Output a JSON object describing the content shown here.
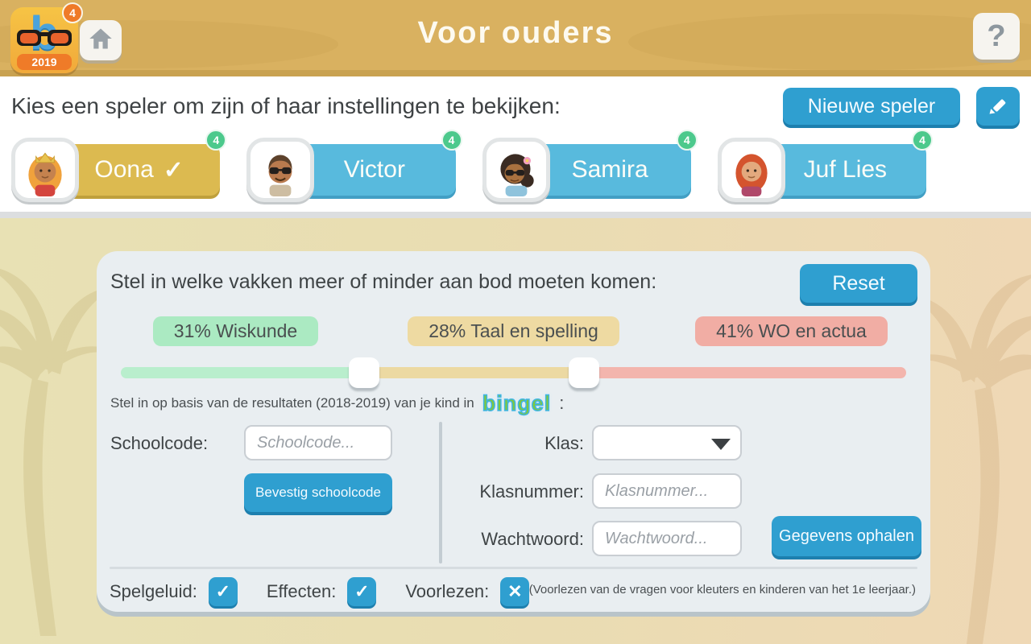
{
  "header": {
    "title": "Voor ouders",
    "logo": {
      "letter": "b",
      "year": "2019",
      "badge": "4"
    },
    "help_label": "?"
  },
  "player_section": {
    "heading": "Kies een speler om zijn of haar instellingen te bekijken:",
    "new_player_label": "Nieuwe speler",
    "selected_check_glyph": "✓",
    "players": [
      {
        "name": "Oona",
        "badge": "4",
        "selected": true
      },
      {
        "name": "Victor",
        "badge": "4",
        "selected": false
      },
      {
        "name": "Samira",
        "badge": "4",
        "selected": false
      },
      {
        "name": "Juf Lies",
        "badge": "4",
        "selected": false
      }
    ]
  },
  "settings": {
    "subjects_heading": "Stel in welke vakken meer of minder aan bod moeten komen:",
    "reset_label": "Reset",
    "subjects": [
      {
        "label": "31% Wiskunde",
        "percent": 31,
        "pill_color": "#abeac2",
        "track_color": "#b9eecd"
      },
      {
        "label": "28% Taal en spelling",
        "percent": 28,
        "pill_color": "#eedaa2",
        "track_color": "#ecd9a2"
      },
      {
        "label": "41% WO en actua",
        "percent": 41,
        "pill_color": "#f1ada4",
        "track_color": "#f3b5ad"
      }
    ],
    "bingel_line": {
      "prefix": "Stel in op basis van de resultaten (2018-2019) van je kind in",
      "logo": "bingel",
      "suffix": ":"
    },
    "form": {
      "schoolcode_label": "Schoolcode:",
      "schoolcode_placeholder": "Schoolcode...",
      "confirm_schoolcode_label": "Bevestig schoolcode",
      "klas_label": "Klas:",
      "klas_value": "",
      "klasnummer_label": "Klasnummer:",
      "klasnummer_placeholder": "Klasnummer...",
      "wachtwoord_label": "Wachtwoord:",
      "wachtwoord_placeholder": "Wachtwoord...",
      "fetch_label": "Gegevens ophalen"
    },
    "toggles": [
      {
        "label": "Spelgeluid:",
        "state": "checked",
        "glyph": "✓"
      },
      {
        "label": "Effecten:",
        "state": "checked",
        "glyph": "✓"
      },
      {
        "label": "Voorlezen:",
        "state": "crossed",
        "glyph": "✕"
      }
    ],
    "toggles_note": "(Voorlezen van de vragen voor kleuters en kinderen van het 1e leerjaar.)"
  }
}
